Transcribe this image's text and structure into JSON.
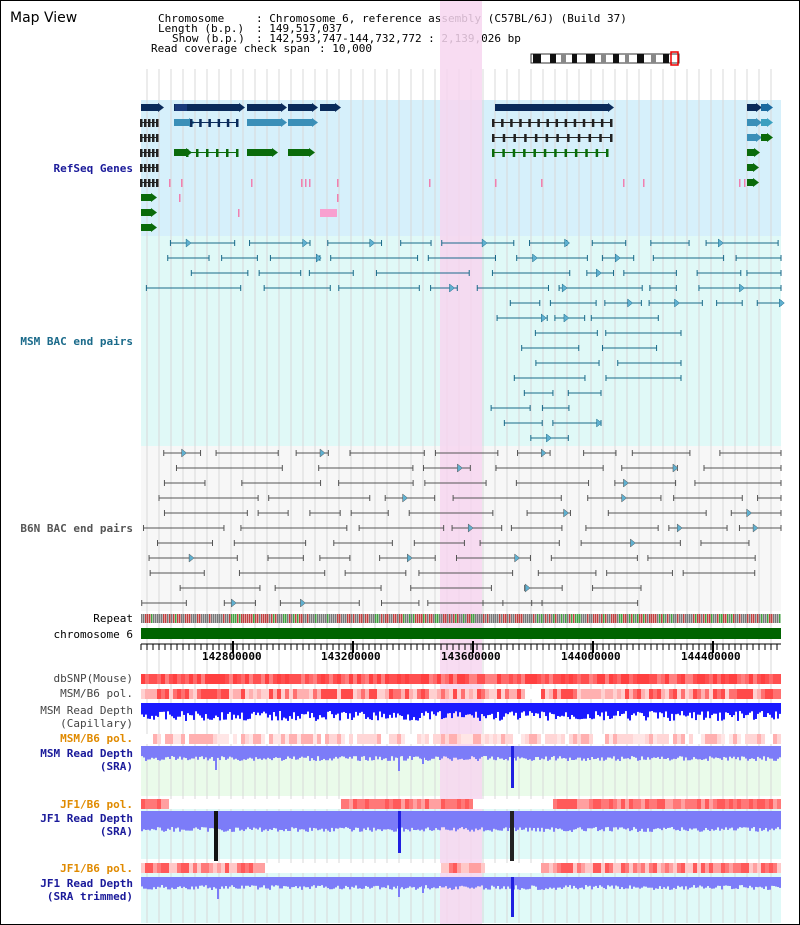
{
  "header": {
    "title": "Map View",
    "chromosome_key": "Chromosome",
    "chromosome_value": ": Chromosome 6, reference assembly (C57BL/6J) (Build 37)",
    "length_key": "Length (b.p.)",
    "length_value": ": 149,517,037",
    "show_key": "Show (b.p.)",
    "show_value": ": 142,593,747-144,732,772 : 2,139,026 bp",
    "coverage_key": "Read coverage check span",
    "coverage_value": ": 10,000"
  },
  "tracks": {
    "refseq": "RefSeq Genes",
    "msm_bac": "MSM BAC end pairs",
    "b6n_bac": "B6N BAC end pairs",
    "repeat": "Repeat",
    "chromosome": "chromosome 6",
    "dbsnp": "dbSNP(Mouse)",
    "msm_b6_pol": "MSM/B6 pol.",
    "msm_depth_cap_1": "MSM Read Depth",
    "msm_depth_cap_2": "(Capillary)",
    "msm_b6_pol_2": "MSM/B6 pol.",
    "msm_depth_sra_1": "MSM Read Depth",
    "msm_depth_sra_2": "(SRA)",
    "jf1_b6_pol": "JF1/B6 pol.",
    "jf1_depth_sra_1": "JF1 Read Depth",
    "jf1_depth_sra_2": "(SRA)",
    "jf1_b6_pol_2": "JF1/B6 pol.",
    "jf1_depth_trim_1": "JF1 Read Depth",
    "jf1_depth_trim_2": "(SRA trimmed)"
  },
  "scale": {
    "ticks": [
      "142800000",
      "143200000",
      "143600000",
      "144000000",
      "144400000"
    ]
  },
  "colors": {
    "highlight": "#f7d6f0",
    "refseq_bg": "#d6f0fb",
    "msm_bg": "#e0f9f7",
    "gene_navy": "#0a2a5a",
    "gene_teal": "#3a8fb8",
    "gene_green": "#0a6a0a",
    "msm_line": "#1a6a8a",
    "b6n_line": "#555555",
    "chromosome": "#006400",
    "depth_blue": "#1a1aff",
    "depth_purple": "#7c7cf8",
    "pol_red": "#ff4a4a",
    "label_blue": "#1a1a9a",
    "label_orange": "#e08a00",
    "label_teal": "#1a6a8a"
  }
}
